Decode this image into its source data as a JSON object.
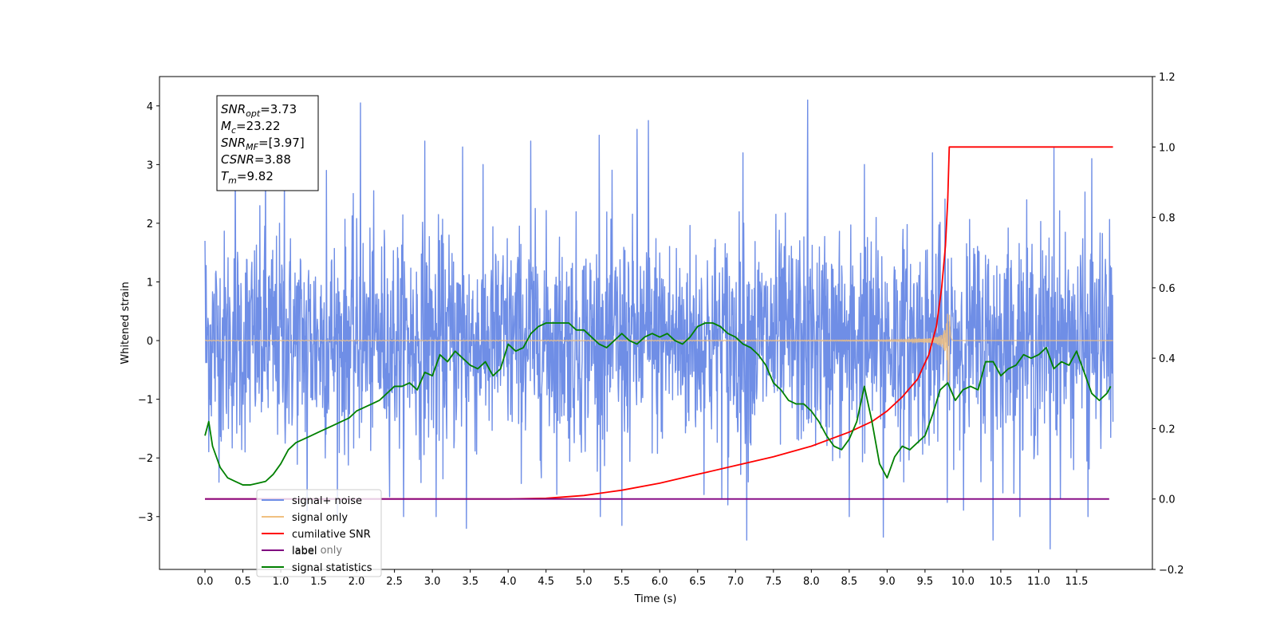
{
  "chart_data": {
    "type": "line",
    "title": "",
    "xlabel": "Time (s)",
    "ylabel": "Whitened strain",
    "y2label": "",
    "xlim": [
      -0.6,
      12.5
    ],
    "ylim": [
      -3.9,
      4.5
    ],
    "y2lim": [
      -0.2,
      1.2
    ],
    "xticks": [
      0.0,
      0.5,
      1.0,
      1.5,
      2.0,
      2.5,
      3.0,
      3.5,
      4.0,
      4.5,
      5.0,
      5.5,
      6.0,
      6.5,
      7.0,
      7.5,
      8.0,
      8.5,
      9.0,
      9.5,
      10.0,
      10.5,
      11.0,
      11.5
    ],
    "xtick_labels": [
      "0.0",
      "0.5",
      "1.0",
      "1.5",
      "2.0",
      "2.5",
      "3.0",
      "3.5",
      "4.0",
      "4.5",
      "5.0",
      "5.5",
      "6.0",
      "6.5",
      "7.0",
      "7.5",
      "8.0",
      "8.5",
      "9.0",
      "9.5",
      "10.0",
      "10.5",
      "11.0",
      "11.5"
    ],
    "yticks": [
      -3,
      -2,
      -1,
      0,
      1,
      2,
      3,
      4
    ],
    "ytick_labels": [
      "−3",
      "−2",
      "−1",
      "0",
      "1",
      "2",
      "3",
      "4"
    ],
    "y2ticks": [
      -0.2,
      0.0,
      0.2,
      0.4,
      0.6,
      0.8,
      1.0,
      1.2
    ],
    "y2tick_labels": [
      "−0.2",
      "0.0",
      "0.2",
      "0.4",
      "0.6",
      "0.8",
      "1.0",
      "1.2"
    ],
    "grid": false,
    "legend_position": "lower-left",
    "annotation": {
      "lines": [
        {
          "main": "SNR",
          "sub": "opt",
          "value": "=3.73"
        },
        {
          "main": "M",
          "sub": "c",
          "value": "=23.22"
        },
        {
          "main": "SNR",
          "sub": "MF",
          "value": "=[3.97]"
        },
        {
          "main": "CSNR",
          "sub": "",
          "value": "=3.88"
        },
        {
          "main": "T",
          "sub": "m",
          "value": "=9.82"
        }
      ]
    },
    "series": [
      {
        "name": "signal+ noise",
        "color": "#6f8ee6",
        "axis": "left",
        "kind": "noise",
        "x_range": [
          0.0,
          11.98
        ],
        "std": 0.92,
        "spikes": [
          [
            0.0,
            1.7
          ],
          [
            0.4,
            3.3
          ],
          [
            0.8,
            3.2
          ],
          [
            1.05,
            3.0
          ],
          [
            1.6,
            2.9
          ],
          [
            2.05,
            4.05
          ],
          [
            2.9,
            3.4
          ],
          [
            3.4,
            3.3
          ],
          [
            4.3,
            3.4
          ],
          [
            5.2,
            3.5
          ],
          [
            5.7,
            3.6
          ],
          [
            5.85,
            3.75
          ],
          [
            7.1,
            3.2
          ],
          [
            7.95,
            4.1
          ],
          [
            8.7,
            3.0
          ],
          [
            9.6,
            3.2
          ],
          [
            10.4,
            3.3
          ],
          [
            11.2,
            3.3
          ],
          [
            11.7,
            3.1
          ],
          [
            1.35,
            -2.9
          ],
          [
            3.05,
            -3.0
          ],
          [
            3.45,
            -3.2
          ],
          [
            5.5,
            -3.15
          ],
          [
            6.9,
            -2.8
          ],
          [
            7.15,
            -3.4
          ],
          [
            8.5,
            -3.0
          ],
          [
            8.95,
            -3.35
          ],
          [
            10.4,
            -3.4
          ],
          [
            11.15,
            -3.55
          ],
          [
            11.65,
            -3.0
          ]
        ]
      },
      {
        "name": "signal only",
        "color": "#f0c080",
        "axis": "left",
        "kind": "chirp",
        "x_range": [
          0.0,
          11.98
        ],
        "merger_time": 9.82,
        "peak_amplitude": 0.78
      },
      {
        "name": "cumilative SNR",
        "color": "#ff0000",
        "axis": "right",
        "x": [
          0.0,
          3.5,
          4.0,
          4.5,
          5.0,
          5.5,
          6.0,
          6.5,
          7.0,
          7.5,
          8.0,
          8.5,
          8.8,
          9.0,
          9.2,
          9.4,
          9.55,
          9.65,
          9.72,
          9.77,
          9.8,
          9.82,
          11.98
        ],
        "y": [
          0.0,
          0.0,
          0.0,
          0.002,
          0.01,
          0.025,
          0.045,
          0.07,
          0.095,
          0.12,
          0.15,
          0.19,
          0.22,
          0.25,
          0.29,
          0.34,
          0.41,
          0.49,
          0.6,
          0.72,
          0.85,
          1.0,
          1.0
        ]
      },
      {
        "name": "label",
        "color": "#800080",
        "axis": "right",
        "x": [
          0.0,
          11.93
        ],
        "y": [
          0.0,
          0.0
        ]
      },
      {
        "name": "signal statistics",
        "color": "#008000",
        "axis": "right",
        "x": [
          0.0,
          0.05,
          0.1,
          0.2,
          0.3,
          0.4,
          0.5,
          0.6,
          0.7,
          0.8,
          0.9,
          1.0,
          1.1,
          1.2,
          1.3,
          1.4,
          1.5,
          1.6,
          1.7,
          1.8,
          1.9,
          2.0,
          2.1,
          2.2,
          2.3,
          2.4,
          2.5,
          2.6,
          2.7,
          2.8,
          2.9,
          3.0,
          3.1,
          3.2,
          3.3,
          3.4,
          3.5,
          3.6,
          3.7,
          3.8,
          3.9,
          4.0,
          4.1,
          4.2,
          4.3,
          4.4,
          4.5,
          4.6,
          4.7,
          4.8,
          4.9,
          5.0,
          5.1,
          5.2,
          5.3,
          5.4,
          5.5,
          5.6,
          5.7,
          5.8,
          5.9,
          6.0,
          6.1,
          6.2,
          6.3,
          6.4,
          6.5,
          6.6,
          6.7,
          6.8,
          6.9,
          7.0,
          7.1,
          7.2,
          7.3,
          7.4,
          7.5,
          7.6,
          7.7,
          7.8,
          7.9,
          8.0,
          8.1,
          8.2,
          8.3,
          8.4,
          8.5,
          8.6,
          8.7,
          8.8,
          8.9,
          9.0,
          9.1,
          9.2,
          9.3,
          9.4,
          9.5,
          9.6,
          9.7,
          9.8,
          9.9,
          10.0,
          10.1,
          10.2,
          10.3,
          10.4,
          10.5,
          10.6,
          10.7,
          10.8,
          10.9,
          11.0,
          11.1,
          11.2,
          11.3,
          11.4,
          11.5,
          11.6,
          11.7,
          11.8,
          11.9,
          11.95
        ],
        "y": [
          0.18,
          0.22,
          0.15,
          0.09,
          0.06,
          0.05,
          0.04,
          0.04,
          0.045,
          0.05,
          0.07,
          0.1,
          0.14,
          0.16,
          0.17,
          0.18,
          0.19,
          0.2,
          0.21,
          0.22,
          0.23,
          0.25,
          0.26,
          0.27,
          0.28,
          0.3,
          0.32,
          0.32,
          0.33,
          0.31,
          0.36,
          0.35,
          0.41,
          0.39,
          0.42,
          0.4,
          0.38,
          0.37,
          0.39,
          0.35,
          0.37,
          0.44,
          0.42,
          0.43,
          0.47,
          0.49,
          0.5,
          0.5,
          0.5,
          0.5,
          0.48,
          0.48,
          0.46,
          0.44,
          0.43,
          0.45,
          0.47,
          0.45,
          0.44,
          0.46,
          0.47,
          0.46,
          0.47,
          0.45,
          0.44,
          0.46,
          0.49,
          0.5,
          0.5,
          0.49,
          0.47,
          0.46,
          0.44,
          0.43,
          0.41,
          0.38,
          0.33,
          0.31,
          0.28,
          0.27,
          0.27,
          0.25,
          0.22,
          0.18,
          0.15,
          0.14,
          0.17,
          0.22,
          0.32,
          0.22,
          0.1,
          0.06,
          0.12,
          0.15,
          0.14,
          0.16,
          0.18,
          0.24,
          0.31,
          0.33,
          0.28,
          0.31,
          0.32,
          0.31,
          0.39,
          0.39,
          0.35,
          0.37,
          0.38,
          0.41,
          0.4,
          0.41,
          0.43,
          0.37,
          0.39,
          0.38,
          0.42,
          0.36,
          0.3,
          0.28,
          0.3,
          0.32
        ]
      }
    ],
    "legend_extra_text": "label only"
  }
}
